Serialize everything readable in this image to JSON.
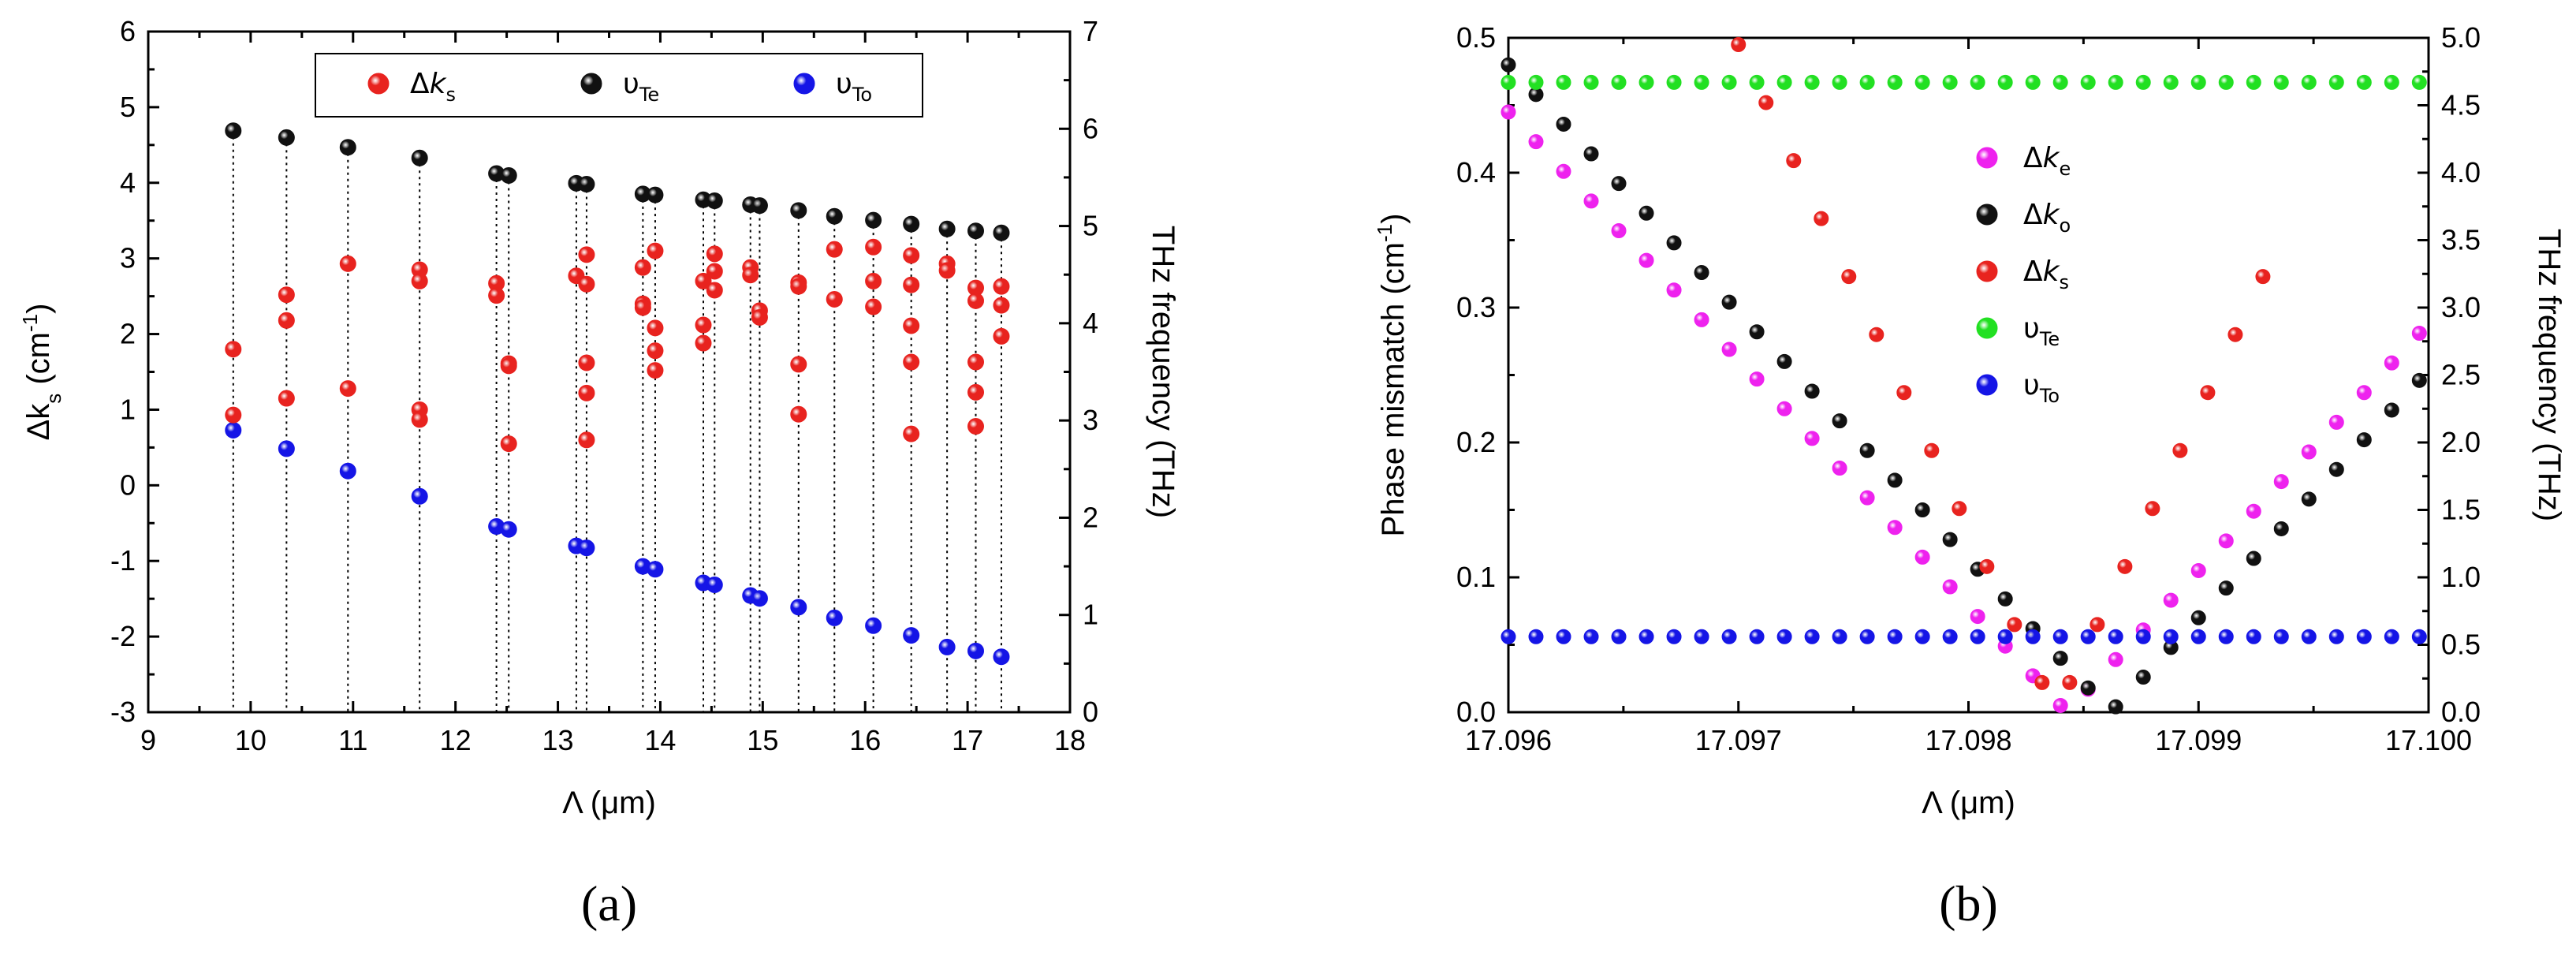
{
  "chart_data": [
    {
      "panel": "a",
      "panel_label": "(a)",
      "type": "scatter",
      "xlabel": "Λ (μm)",
      "ylabel_left": "Δk_s (cm^-1)",
      "ylabel_right": "THz frequency (THz)",
      "xlim": [
        9,
        18
      ],
      "ylim_left": [
        -3,
        6
      ],
      "ylim_right": [
        0,
        7
      ],
      "xticks": [
        "9",
        "10",
        "11",
        "12",
        "13",
        "14",
        "15",
        "16",
        "17",
        "18"
      ],
      "yticks_left": [
        "-3",
        "-2",
        "-1",
        "0",
        "1",
        "2",
        "3",
        "4",
        "5",
        "6"
      ],
      "yticks_right": [
        "0",
        "1",
        "2",
        "3",
        "4",
        "5",
        "6",
        "7"
      ],
      "legend": [
        {
          "label": "Δk",
          "sub": "s",
          "color": "#e8231f"
        },
        {
          "label": "υ",
          "sub": "Te",
          "color": "#111111"
        },
        {
          "label": "υ",
          "sub": "To",
          "color": "#1515e6"
        }
      ],
      "series": [
        {
          "name": "υTe",
          "axis": "right",
          "color": "#111111",
          "x": [
            9.83,
            10.35,
            10.95,
            11.65,
            12.4,
            12.52,
            13.18,
            13.28,
            13.83,
            13.95,
            14.42,
            14.53,
            14.88,
            14.97,
            15.35,
            15.7,
            16.08,
            16.45,
            16.8,
            17.08,
            17.33
          ],
          "y": [
            5.98,
            5.91,
            5.81,
            5.7,
            5.54,
            5.52,
            5.44,
            5.43,
            5.33,
            5.32,
            5.27,
            5.26,
            5.22,
            5.21,
            5.16,
            5.1,
            5.06,
            5.02,
            4.97,
            4.95,
            4.93
          ]
        },
        {
          "name": "υTo",
          "axis": "right",
          "color": "#1515e6",
          "x": [
            9.83,
            10.35,
            10.95,
            11.65,
            12.4,
            12.52,
            13.18,
            13.28,
            13.83,
            13.95,
            14.42,
            14.53,
            14.88,
            14.97,
            15.35,
            15.7,
            16.08,
            16.45,
            16.8,
            17.08,
            17.33
          ],
          "y": [
            2.9,
            2.71,
            2.48,
            2.22,
            1.91,
            1.88,
            1.71,
            1.69,
            1.5,
            1.47,
            1.33,
            1.31,
            1.2,
            1.17,
            1.08,
            0.97,
            0.89,
            0.79,
            0.67,
            0.63,
            0.57
          ]
        },
        {
          "name": "Δks",
          "axis": "left",
          "color": "#e8231f",
          "x": [
            9.83,
            9.83,
            10.35,
            10.35,
            10.35,
            10.95,
            10.95,
            11.65,
            11.65,
            11.65,
            11.65,
            12.4,
            12.4,
            12.52,
            12.52,
            12.52,
            13.18,
            13.28,
            13.28,
            13.28,
            13.28,
            13.28,
            13.83,
            13.83,
            13.83,
            13.95,
            13.95,
            13.95,
            13.95,
            14.42,
            14.42,
            14.42,
            14.53,
            14.53,
            14.53,
            14.88,
            14.88,
            14.97,
            14.97,
            15.35,
            15.35,
            15.35,
            15.35,
            15.7,
            15.7,
            16.08,
            16.08,
            16.08,
            16.45,
            16.45,
            16.45,
            16.45,
            16.45,
            16.8,
            16.8,
            17.08,
            17.08,
            17.08,
            17.08,
            17.08,
            17.33,
            17.33,
            17.33
          ],
          "y": [
            1.8,
            0.93,
            2.52,
            2.18,
            1.15,
            2.93,
            1.28,
            2.85,
            2.7,
            1.0,
            0.87,
            2.67,
            2.51,
            1.61,
            1.58,
            0.55,
            2.77,
            3.05,
            2.66,
            1.62,
            1.22,
            0.6,
            2.88,
            2.4,
            2.35,
            3.1,
            2.08,
            1.78,
            1.52,
            2.7,
            2.12,
            1.88,
            3.06,
            2.83,
            2.58,
            2.88,
            2.78,
            2.31,
            2.22,
            2.68,
            2.63,
            1.6,
            0.94,
            3.12,
            2.46,
            3.15,
            2.7,
            2.36,
            3.04,
            2.65,
            2.11,
            1.63,
            0.68,
            2.93,
            2.84,
            2.61,
            2.44,
            1.63,
            1.23,
            0.78,
            2.63,
            2.38,
            1.97
          ]
        }
      ]
    },
    {
      "panel": "b",
      "panel_label": "(b)",
      "type": "scatter",
      "xlabel": "Λ (μm)",
      "ylabel_left": "Phase mismatch (cm^-1)",
      "ylabel_right": "THz frequency (THz)",
      "xlim": [
        17.096,
        17.1
      ],
      "ylim_left": [
        0.0,
        0.5
      ],
      "ylim_right": [
        0.0,
        5.0
      ],
      "xticks": [
        "17.096",
        "17.097",
        "17.098",
        "17.099",
        "17.100"
      ],
      "yticks_left": [
        "0.0",
        "0.1",
        "0.2",
        "0.3",
        "0.4",
        "0.5"
      ],
      "yticks_right": [
        "0.0",
        "0.5",
        "1.0",
        "1.5",
        "2.0",
        "2.5",
        "3.0",
        "3.5",
        "4.0",
        "4.5",
        "5.0"
      ],
      "legend": [
        {
          "label": "Δk",
          "sub": "e",
          "color": "#ee22ee"
        },
        {
          "label": "Δk",
          "sub": "o",
          "color": "#111111"
        },
        {
          "label": "Δk",
          "sub": "s",
          "color": "#e8231f"
        },
        {
          "label": "υ",
          "sub": "Te",
          "color": "#22e022"
        },
        {
          "label": "υ",
          "sub": "To",
          "color": "#1515e6"
        }
      ],
      "x_samples": [
        17.096,
        17.09612,
        17.09624,
        17.09636,
        17.09648,
        17.0966,
        17.09672,
        17.09684,
        17.09696,
        17.09708,
        17.0972,
        17.09732,
        17.09744,
        17.09756,
        17.09768,
        17.0978,
        17.09792,
        17.09804,
        17.09816,
        17.09828,
        17.0984,
        17.09852,
        17.09864,
        17.09876,
        17.09888,
        17.099,
        17.09912,
        17.09924,
        17.09936,
        17.09948,
        17.0996,
        17.09972,
        17.09984,
        17.09996
      ],
      "series": [
        {
          "name": "Δke",
          "axis": "left",
          "color": "#ee22ee",
          "x": [
            17.096,
            17.09612,
            17.09624,
            17.09636,
            17.09648,
            17.0966,
            17.09672,
            17.09684,
            17.09696,
            17.09708,
            17.0972,
            17.09732,
            17.09744,
            17.09756,
            17.09768,
            17.0978,
            17.09792,
            17.09804,
            17.09816,
            17.09828,
            17.0984,
            17.09852,
            17.09864,
            17.09876,
            17.09888,
            17.099,
            17.09912,
            17.09924,
            17.09936,
            17.09948,
            17.0996,
            17.09972,
            17.09984,
            17.09996
          ],
          "y": [
            0.445,
            0.423,
            0.401,
            0.379,
            0.357,
            0.335,
            0.313,
            0.291,
            0.269,
            0.247,
            0.225,
            0.203,
            0.181,
            0.159,
            0.137,
            0.115,
            0.093,
            0.071,
            0.049,
            0.027,
            0.005,
            0.017,
            0.039,
            0.061,
            0.083,
            0.105,
            0.127,
            0.149,
            0.171,
            0.193,
            0.215,
            0.237,
            0.259,
            0.281
          ]
        },
        {
          "name": "Δko",
          "axis": "left",
          "color": "#111111",
          "x": [
            17.096,
            17.09612,
            17.09624,
            17.09636,
            17.09648,
            17.0966,
            17.09672,
            17.09684,
            17.09696,
            17.09708,
            17.0972,
            17.09732,
            17.09744,
            17.09756,
            17.09768,
            17.0978,
            17.09792,
            17.09804,
            17.09816,
            17.09828,
            17.0984,
            17.09852,
            17.09864,
            17.09876,
            17.09888,
            17.099,
            17.09912,
            17.09924,
            17.09936,
            17.09948,
            17.0996,
            17.09972,
            17.09984,
            17.09996
          ],
          "y": [
            0.48,
            0.458,
            0.436,
            0.414,
            0.392,
            0.37,
            0.348,
            0.326,
            0.304,
            0.282,
            0.26,
            0.238,
            0.216,
            0.194,
            0.172,
            0.15,
            0.128,
            0.106,
            0.084,
            0.062,
            0.04,
            0.018,
            0.004,
            0.026,
            0.048,
            0.07,
            0.092,
            0.114,
            0.136,
            0.158,
            0.18,
            0.202,
            0.224,
            0.246
          ]
        },
        {
          "name": "Δks",
          "axis": "left",
          "color": "#e8231f",
          "x": [
            17.097,
            17.09712,
            17.09724,
            17.09736,
            17.09748,
            17.0976,
            17.09772,
            17.09784,
            17.09796,
            17.09808,
            17.0982,
            17.09832,
            17.09844,
            17.09856,
            17.09868,
            17.0988,
            17.09892,
            17.09904,
            17.09916,
            17.09928
          ],
          "y": [
            0.495,
            0.452,
            0.409,
            0.366,
            0.323,
            0.28,
            0.237,
            0.194,
            0.151,
            0.108,
            0.065,
            0.022,
            0.022,
            0.065,
            0.108,
            0.151,
            0.194,
            0.237,
            0.28,
            0.323
          ]
        },
        {
          "name": "υTe",
          "axis": "right",
          "color": "#22e022",
          "constant": 4.67
        },
        {
          "name": "υTo",
          "axis": "right",
          "color": "#1515e6",
          "constant": 0.56
        }
      ]
    }
  ]
}
